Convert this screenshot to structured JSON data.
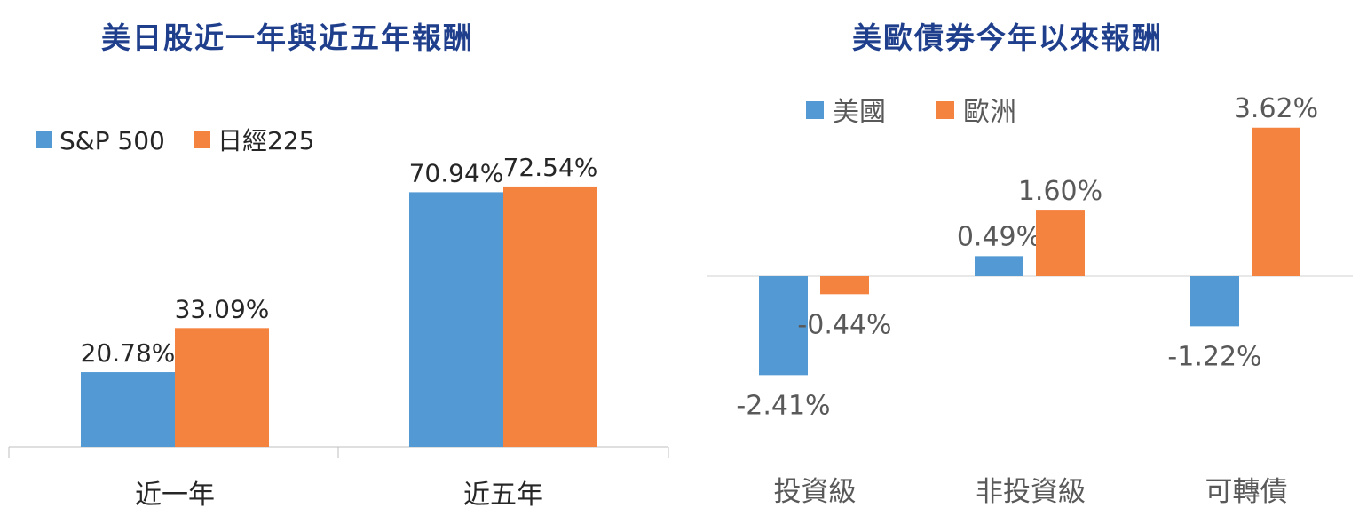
{
  "chart_data": [
    {
      "type": "bar",
      "title": "美日股近一年與近五年報酬",
      "categories": [
        "近一年",
        "近五年"
      ],
      "series": [
        {
          "name": "S&P 500",
          "values": [
            20.78,
            70.94
          ],
          "labels": [
            "20.78%",
            "70.94%"
          ]
        },
        {
          "name": "日經225",
          "values": [
            33.09,
            72.54
          ],
          "labels": [
            "33.09%",
            "72.54%"
          ]
        }
      ],
      "ylim": [
        0,
        80
      ],
      "grid": false,
      "legend": "top-left",
      "colors": [
        "#5399d3",
        "#f58340"
      ]
    },
    {
      "type": "bar",
      "title": "美歐債券今年以來報酬",
      "categories": [
        "投資級",
        "非投資級",
        "可轉債"
      ],
      "series": [
        {
          "name": "美國",
          "values": [
            -2.41,
            0.49,
            -1.22
          ],
          "labels": [
            "-2.41%",
            "0.49%",
            "-1.22%"
          ]
        },
        {
          "name": "歐洲",
          "values": [
            -0.44,
            1.6,
            3.62
          ],
          "labels": [
            "-0.44%",
            "1.60%",
            "3.62%"
          ]
        }
      ],
      "ylim": [
        -4,
        4
      ],
      "grid": false,
      "legend": "top-left",
      "colors": [
        "#5399d3",
        "#f58340"
      ]
    }
  ]
}
